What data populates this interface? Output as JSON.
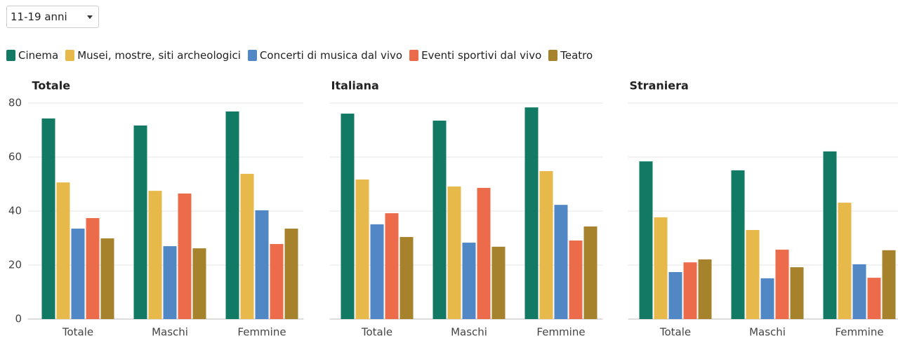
{
  "filter": {
    "selected": "11-19 anni"
  },
  "chart_data": [
    {
      "type": "bar",
      "title": "Totale",
      "categories": [
        "Totale",
        "Maschi",
        "Femmine"
      ],
      "ylim": [
        0,
        80
      ],
      "yticks": [
        0,
        20,
        40,
        60,
        80
      ],
      "grid": true,
      "series": [
        {
          "name": "Cinema",
          "color": "#127a64",
          "values": [
            74.3,
            71.7,
            76.9
          ]
        },
        {
          "name": "Musei, mostre, siti archeologici",
          "color": "#e6b94a",
          "values": [
            50.6,
            47.5,
            53.8
          ]
        },
        {
          "name": "Concerti di musica dal vivo",
          "color": "#5187c4",
          "values": [
            33.5,
            27,
            40.3
          ]
        },
        {
          "name": "Eventi sportivi dal vivo",
          "color": "#ec6b4b",
          "values": [
            37.4,
            46.5,
            27.8
          ]
        },
        {
          "name": "Teatro",
          "color": "#a7822c",
          "values": [
            29.9,
            26.2,
            33.5
          ]
        }
      ]
    },
    {
      "type": "bar",
      "title": "Italiana",
      "categories": [
        "Totale",
        "Maschi",
        "Femmine"
      ],
      "ylim": [
        0,
        80
      ],
      "yticks": [
        0,
        20,
        40,
        60,
        80
      ],
      "grid": true,
      "series": [
        {
          "values": [
            76.1,
            73.5,
            78.4
          ]
        },
        {
          "values": [
            51.7,
            49.1,
            54.8
          ]
        },
        {
          "values": [
            35.1,
            28.3,
            42.3
          ]
        },
        {
          "values": [
            39.2,
            48.6,
            29.1
          ]
        },
        {
          "values": [
            30.4,
            26.8,
            34.3
          ]
        }
      ]
    },
    {
      "type": "bar",
      "title": "Straniera",
      "categories": [
        "Totale",
        "Maschi",
        "Femmine"
      ],
      "ylim": [
        0,
        80
      ],
      "yticks": [
        0,
        20,
        40,
        60,
        80
      ],
      "grid": true,
      "series": [
        {
          "values": [
            58.4,
            55.1,
            62.1
          ]
        },
        {
          "values": [
            37.7,
            33,
            43.1
          ]
        },
        {
          "values": [
            17.4,
            15.1,
            20.3
          ]
        },
        {
          "values": [
            21,
            25.7,
            15.3
          ]
        },
        {
          "values": [
            22.1,
            19.2,
            25.5
          ]
        }
      ]
    }
  ]
}
